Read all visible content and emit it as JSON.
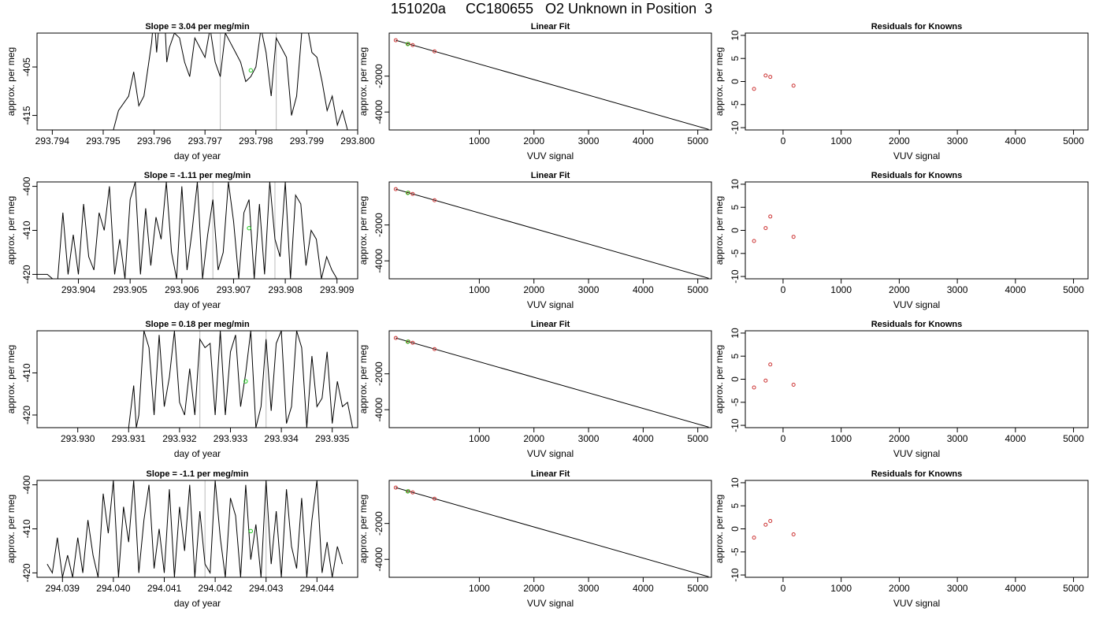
{
  "page_title": "151020a     CC180655   O2 Unknown in Position  3",
  "colors": {
    "line": "#000000",
    "known_points": "#cc3333",
    "unknown_point": "#22cc22",
    "vline": "#bbbbbb"
  },
  "chart_data": [
    {
      "type": "line",
      "title": "Slope =  3.04  per meg/min",
      "xlabel": "day of year",
      "ylabel": "approx. per meg",
      "xlim": [
        293.7937,
        293.8
      ],
      "ylim": [
        -418,
        -398
      ],
      "xticks": [
        "293.794",
        "293.795",
        "293.796",
        "293.797",
        "293.798",
        "293.799",
        "293.800"
      ],
      "yticks": [
        "-405",
        "-415"
      ],
      "series": [
        {
          "x": [
            293.7952,
            293.7953,
            293.7955,
            293.7956,
            293.7957,
            293.7958,
            293.79595,
            293.796,
            293.79605,
            293.7961,
            293.7962,
            293.79625,
            293.7963,
            293.7964,
            293.7965,
            293.7966,
            293.7967,
            293.7968,
            293.7969,
            293.797,
            293.7971,
            293.7972,
            293.7973,
            293.7974,
            293.7975,
            293.7976,
            293.7977,
            293.7978,
            293.7979,
            293.798,
            293.7981,
            293.7982,
            293.7983,
            293.7984,
            293.7985,
            293.7986,
            293.7987,
            293.7988,
            293.7989,
            293.799,
            293.7991,
            293.7992,
            293.7993,
            293.7994,
            293.7995,
            293.7996,
            293.7997,
            293.7998
          ],
          "y": [
            -418,
            -414,
            -411,
            -406,
            -413,
            -411,
            -400,
            -394,
            -402,
            -396,
            -393,
            -404,
            -401,
            -398,
            -399,
            -404,
            -407,
            -399,
            -401,
            -403,
            -397,
            -404,
            -407,
            -398,
            -400,
            -402,
            -404,
            -408,
            -407,
            -405,
            -397,
            -402,
            -411,
            -399,
            -401,
            -403,
            -415,
            -411,
            -398,
            -396,
            -402,
            -403,
            -408,
            -414,
            -411,
            -417,
            -414,
            -418
          ]
        }
      ],
      "vlines": [
        293.7973,
        293.7984
      ],
      "unknown_point": {
        "x": 293.7979,
        "y": -405.7
      }
    },
    {
      "type": "scatter",
      "title": "Linear Fit",
      "xlabel": "VUV signal",
      "ylabel": "approx. per meg",
      "xlim": [
        -650,
        5250
      ],
      "ylim": [
        -5000,
        400
      ],
      "xticks": [
        "1000",
        "2000",
        "3000",
        "4000",
        "5000"
      ],
      "yticks": [
        "-2000",
        "-4000"
      ],
      "fit_line": {
        "x": [
          -530,
          5200
        ],
        "y": [
          0,
          -4970
        ]
      },
      "known_points": {
        "x": [
          -530,
          -300,
          -220,
          180
        ],
        "y": [
          0,
          -200,
          -270,
          -620
        ]
      },
      "unknown_point": {
        "x": -310,
        "y": -210
      }
    },
    {
      "type": "scatter",
      "title": "Residuals for Knowns",
      "xlabel": "VUV signal",
      "ylabel": "approx. per meg",
      "xlim": [
        -650,
        5250
      ],
      "ylim": [
        -10.5,
        10.5
      ],
      "xticks": [
        "0",
        "1000",
        "2000",
        "3000",
        "4000",
        "5000"
      ],
      "yticks": [
        "-10",
        "-5",
        "0",
        "5",
        "10"
      ],
      "known_points": {
        "x": [
          -500,
          -300,
          -220,
          180
        ],
        "y": [
          -1.6,
          1.3,
          1.0,
          -0.9
        ]
      }
    },
    {
      "type": "line",
      "title": "Slope =  -1.11  per meg/min",
      "xlabel": "day of year",
      "ylabel": "approx. per meg",
      "xlim": [
        293.9032,
        293.9094
      ],
      "ylim": [
        -421,
        -399
      ],
      "xticks": [
        "293.904",
        "293.905",
        "293.906",
        "293.907",
        "293.908",
        "293.909"
      ],
      "yticks": [
        "-400",
        "-410",
        "-420"
      ],
      "series": [
        {
          "x": [
            293.9032,
            293.9034,
            293.9035,
            293.9036,
            293.9037,
            293.9038,
            293.9039,
            293.904,
            293.9041,
            293.9042,
            293.9043,
            293.9044,
            293.9045,
            293.9046,
            293.9047,
            293.9048,
            293.9049,
            293.905,
            293.9051,
            293.9052,
            293.9053,
            293.9054,
            293.9055,
            293.9056,
            293.9057,
            293.9058,
            293.9059,
            293.906,
            293.9061,
            293.9062,
            293.9063,
            293.9064,
            293.9065,
            293.9066,
            293.9067,
            293.9068,
            293.9069,
            293.907,
            293.9071,
            293.9072,
            293.9073,
            293.9074,
            293.9075,
            293.9076,
            293.9077,
            293.9078,
            293.9079,
            293.908,
            293.9081,
            293.9082,
            293.9083,
            293.9084,
            293.9085,
            293.9086,
            293.9087,
            293.9088,
            293.9089,
            293.909,
            293.9091
          ],
          "y": [
            -420,
            -420,
            -421,
            -421,
            -406,
            -420,
            -411,
            -420,
            -404,
            -416,
            -419,
            -406,
            -410,
            -400,
            -420,
            -412,
            -421,
            -403,
            -399,
            -420,
            -405,
            -418,
            -407,
            -412,
            -399,
            -415,
            -421,
            -400,
            -419,
            -410,
            -399,
            -421,
            -411,
            -403,
            -419,
            -415,
            -399,
            -408,
            -421,
            -406,
            -403,
            -421,
            -404,
            -420,
            -399,
            -412,
            -416,
            -399,
            -421,
            -402,
            -404,
            -418,
            -410,
            -412,
            -421,
            -416,
            -419,
            -421,
            -421
          ]
        }
      ],
      "vlines": [
        293.9066,
        293.9078
      ],
      "unknown_point": {
        "x": 293.9073,
        "y": -409.5
      }
    },
    {
      "type": "scatter",
      "title": "Linear Fit",
      "xlabel": "VUV signal",
      "ylabel": "approx. per meg",
      "xlim": [
        -650,
        5250
      ],
      "ylim": [
        -5000,
        400
      ],
      "xticks": [
        "1000",
        "2000",
        "3000",
        "4000",
        "5000"
      ],
      "yticks": [
        "-2000",
        "-4000"
      ],
      "fit_line": {
        "x": [
          -530,
          5200
        ],
        "y": [
          0,
          -4970
        ]
      },
      "known_points": {
        "x": [
          -530,
          -300,
          -220,
          180
        ],
        "y": [
          0,
          -200,
          -270,
          -620
        ]
      },
      "unknown_point": {
        "x": -310,
        "y": -210
      }
    },
    {
      "type": "scatter",
      "title": "Residuals for Knowns",
      "xlabel": "VUV signal",
      "ylabel": "approx. per meg",
      "xlim": [
        -650,
        5250
      ],
      "ylim": [
        -10.5,
        10.5
      ],
      "xticks": [
        "0",
        "1000",
        "2000",
        "3000",
        "4000",
        "5000"
      ],
      "yticks": [
        "-10",
        "-5",
        "0",
        "5",
        "10"
      ],
      "known_points": {
        "x": [
          -500,
          -300,
          -220,
          180
        ],
        "y": [
          -2.3,
          0.5,
          3.0,
          -1.4
        ]
      }
    },
    {
      "type": "line",
      "title": "Slope =  0.18  per meg/min",
      "xlabel": "day of year",
      "ylabel": "approx. per meg",
      "xlim": [
        293.9292,
        293.9355
      ],
      "ylim": [
        -423,
        -400
      ],
      "xticks": [
        "293.930",
        "293.931",
        "293.932",
        "293.933",
        "293.934",
        "293.935"
      ],
      "yticks": [
        "-410",
        "-420"
      ],
      "series": [
        {
          "x": [
            293.9292,
            293.931,
            293.9311,
            293.93115,
            293.9312,
            293.9313,
            293.9314,
            293.9315,
            293.9316,
            293.9317,
            293.9318,
            293.9319,
            293.932,
            293.9321,
            293.9322,
            293.9323,
            293.9324,
            293.9325,
            293.9326,
            293.9327,
            293.9328,
            293.9329,
            293.933,
            293.9331,
            293.9332,
            293.9333,
            293.9334,
            293.9335,
            293.9336,
            293.9337,
            293.9338,
            293.9339,
            293.934,
            293.9341,
            293.9342,
            293.9343,
            293.9344,
            293.9345,
            293.9346,
            293.9347,
            293.9348,
            293.9349,
            293.935,
            293.9351,
            293.9352,
            293.9353,
            293.9354
          ],
          "y": [
            -423,
            -423,
            -413,
            -423,
            -420,
            -400,
            -404,
            -420,
            -401,
            -418,
            -411,
            -400,
            -417,
            -420,
            -409,
            -420,
            -402,
            -404,
            -403,
            -420,
            -400,
            -420,
            -405,
            -401,
            -418,
            -410,
            -400,
            -423,
            -418,
            -402,
            -419,
            -403,
            -400,
            -422,
            -418,
            -400,
            -404,
            -423,
            -406,
            -418,
            -416,
            -405,
            -422,
            -412,
            -418,
            -417,
            -423
          ]
        }
      ],
      "vlines": [
        293.9324,
        293.9337
      ],
      "unknown_point": {
        "x": 293.9333,
        "y": -412
      }
    },
    {
      "type": "scatter",
      "title": "Linear Fit",
      "xlabel": "VUV signal",
      "ylabel": "approx. per meg",
      "xlim": [
        -650,
        5250
      ],
      "ylim": [
        -5000,
        400
      ],
      "xticks": [
        "1000",
        "2000",
        "3000",
        "4000",
        "5000"
      ],
      "yticks": [
        "-2000",
        "-4000"
      ],
      "fit_line": {
        "x": [
          -530,
          5200
        ],
        "y": [
          0,
          -4970
        ]
      },
      "known_points": {
        "x": [
          -530,
          -300,
          -220,
          180
        ],
        "y": [
          0,
          -200,
          -270,
          -620
        ]
      },
      "unknown_point": {
        "x": -310,
        "y": -210
      }
    },
    {
      "type": "scatter",
      "title": "Residuals for Knowns",
      "xlabel": "VUV signal",
      "ylabel": "approx. per meg",
      "xlim": [
        -650,
        5250
      ],
      "ylim": [
        -10.5,
        10.5
      ],
      "xticks": [
        "0",
        "1000",
        "2000",
        "3000",
        "4000",
        "5000"
      ],
      "yticks": [
        "-10",
        "-5",
        "0",
        "5",
        "10"
      ],
      "known_points": {
        "x": [
          -500,
          -300,
          -220,
          180
        ],
        "y": [
          -1.8,
          -0.3,
          3.2,
          -1.2
        ]
      }
    },
    {
      "type": "line",
      "title": "Slope =  -1.1  per meg/min",
      "xlabel": "day of year",
      "ylabel": "approx. per meg",
      "xlim": [
        294.0385,
        294.0448
      ],
      "ylim": [
        -421,
        -399
      ],
      "xticks": [
        "294.039",
        "294.040",
        "294.041",
        "294.042",
        "294.043",
        "294.044"
      ],
      "yticks": [
        "-400",
        "-410",
        "-420"
      ],
      "series": [
        {
          "x": [
            294.0387,
            294.0388,
            294.0389,
            294.039,
            294.0391,
            294.0392,
            294.0393,
            294.0394,
            294.0395,
            294.0396,
            294.0397,
            294.0398,
            294.0399,
            294.04,
            294.0401,
            294.0402,
            294.0403,
            294.0404,
            294.0405,
            294.0406,
            294.0407,
            294.0408,
            294.0409,
            294.041,
            294.0411,
            294.0412,
            294.0413,
            294.0414,
            294.0415,
            294.0416,
            294.0417,
            294.0418,
            294.0419,
            294.042,
            294.0421,
            294.0422,
            294.0423,
            294.0424,
            294.0425,
            294.0426,
            294.0427,
            294.0428,
            294.0429,
            294.043,
            294.0431,
            294.0432,
            294.0433,
            294.0434,
            294.0435,
            294.0436,
            294.0437,
            294.0438,
            294.0439,
            294.044,
            294.0441,
            294.0442,
            294.0443,
            294.0444,
            294.0445
          ],
          "y": [
            -418,
            -420,
            -412,
            -421,
            -416,
            -421,
            -412,
            -420,
            -408,
            -416,
            -421,
            -402,
            -411,
            -399,
            -421,
            -405,
            -413,
            -399,
            -420,
            -408,
            -400,
            -419,
            -410,
            -420,
            -401,
            -421,
            -405,
            -415,
            -400,
            -421,
            -406,
            -418,
            -420,
            -399,
            -412,
            -421,
            -403,
            -407,
            -421,
            -400,
            -417,
            -409,
            -421,
            -399,
            -418,
            -406,
            -421,
            -401,
            -414,
            -419,
            -403,
            -421,
            -408,
            -399,
            -420,
            -413,
            -421,
            -414,
            -418
          ]
        }
      ],
      "vlines": [
        294.0418,
        294.043
      ],
      "unknown_point": {
        "x": 294.0427,
        "y": -410.5
      }
    },
    {
      "type": "scatter",
      "title": "Linear Fit",
      "xlabel": "VUV signal",
      "ylabel": "approx. per meg",
      "xlim": [
        -650,
        5250
      ],
      "ylim": [
        -5000,
        400
      ],
      "xticks": [
        "1000",
        "2000",
        "3000",
        "4000",
        "5000"
      ],
      "yticks": [
        "-2000",
        "-4000"
      ],
      "fit_line": {
        "x": [
          -530,
          5200
        ],
        "y": [
          0,
          -4970
        ]
      },
      "known_points": {
        "x": [
          -530,
          -300,
          -220,
          180
        ],
        "y": [
          0,
          -200,
          -270,
          -620
        ]
      },
      "unknown_point": {
        "x": -310,
        "y": -210
      }
    },
    {
      "type": "scatter",
      "title": "Residuals for Knowns",
      "xlabel": "VUV signal",
      "ylabel": "approx. per meg",
      "xlim": [
        -650,
        5250
      ],
      "ylim": [
        -10.5,
        10.5
      ],
      "xticks": [
        "0",
        "1000",
        "2000",
        "3000",
        "4000",
        "5000"
      ],
      "yticks": [
        "-10",
        "-5",
        "0",
        "5",
        "10"
      ],
      "known_points": {
        "x": [
          -500,
          -300,
          -220,
          180
        ],
        "y": [
          -1.9,
          0.9,
          1.7,
          -1.2
        ]
      }
    }
  ]
}
